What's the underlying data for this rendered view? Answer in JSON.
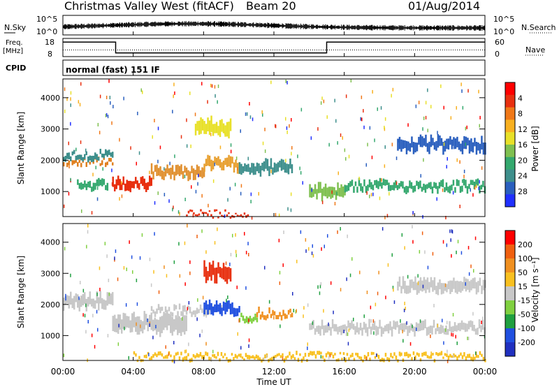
{
  "header": {
    "title": "Christmas Valley West (fitACF)",
    "beam": "Beam 20",
    "date": "01/Aug/2014"
  },
  "chart_data": [
    {
      "type": "line",
      "panel": "noise",
      "left_label": "N.Sky",
      "right_label": "N.Search",
      "left_ticks": [
        "10^5",
        "10^0"
      ],
      "right_ticks": [
        "10^5",
        "10^0"
      ],
      "scale": "log"
    },
    {
      "type": "line",
      "panel": "frequency",
      "left_label_line1": "Freq.",
      "left_label_line2": "[MHz]",
      "right_label": "Nave",
      "left_ticks": [
        18,
        8
      ],
      "right_ticks": [
        60,
        0
      ],
      "freq_steps": [
        {
          "t": 0,
          "v": 16
        },
        {
          "t": 3,
          "v": 16
        },
        {
          "t": 3,
          "v": 10
        },
        {
          "t": 15,
          "v": 10
        },
        {
          "t": 15,
          "v": 16
        },
        {
          "t": 24,
          "v": 16
        }
      ],
      "nave_level": 22
    },
    {
      "type": "text",
      "panel": "cpid",
      "label": "CPID",
      "mode": "normal (fast) 151 IF"
    },
    {
      "type": "heatmap",
      "panel": "power",
      "ylabel": "Slant Range [km]",
      "yticks": [
        1000,
        2000,
        3000,
        4000
      ],
      "ylim": [
        200,
        4600
      ],
      "xlim": [
        0,
        24
      ],
      "colorbar_label": "Power [dB]",
      "colorbar_ticks": [
        "4",
        "8",
        "12",
        "16",
        "20",
        "24",
        "28"
      ],
      "colorbar_colors": [
        "#2030ff",
        "#2a5fbe",
        "#3e8f8c",
        "#34a86e",
        "#7fc050",
        "#e8e028",
        "#f8b020",
        "#f07818",
        "#e83010",
        "#ff0000"
      ],
      "bands": [
        {
          "t": [
            0,
            2.8
          ],
          "r": [
            1900,
            2050
          ],
          "color": "#e08020"
        },
        {
          "t": [
            0,
            2.8
          ],
          "r": [
            2050,
            2250
          ],
          "color": "#3e8f8c"
        },
        {
          "t": [
            0.8,
            2.5
          ],
          "r": [
            1050,
            1300
          ],
          "color": "#34a86e"
        },
        {
          "t": [
            2.8,
            5
          ],
          "r": [
            1050,
            1400
          ],
          "color": "#e83010"
        },
        {
          "t": [
            5,
            8
          ],
          "r": [
            1450,
            1800
          ],
          "color": "#e09030"
        },
        {
          "t": [
            8,
            10
          ],
          "r": [
            1700,
            2050
          ],
          "color": "#e8a030"
        },
        {
          "t": [
            10,
            13
          ],
          "r": [
            1600,
            1950
          ],
          "color": "#3e8f8c"
        },
        {
          "t": [
            14,
            16
          ],
          "r": [
            800,
            1200
          ],
          "color": "#7fc050"
        },
        {
          "t": [
            16,
            24
          ],
          "r": [
            1050,
            1300
          ],
          "color": "#34a86e"
        },
        {
          "t": [
            7.5,
            9.5
          ],
          "r": [
            2800,
            3300
          ],
          "color": "#e8e028"
        },
        {
          "t": [
            19,
            24
          ],
          "r": [
            2300,
            2700
          ],
          "color": "#2a5fbe"
        },
        {
          "t": [
            7,
            10.5
          ],
          "r": [
            250,
            330
          ],
          "color": "#e83010"
        }
      ]
    },
    {
      "type": "heatmap",
      "panel": "velocity",
      "ylabel": "Slant Range [km]",
      "yticks": [
        1000,
        2000,
        3000,
        4000
      ],
      "ylim": [
        200,
        4600
      ],
      "xlim": [
        0,
        24
      ],
      "colorbar_label": "Velocity [m s⁻¹]",
      "colorbar_ticks": [
        "200",
        "100",
        "50",
        "15",
        "-15",
        "-50",
        "-100",
        "-200"
      ],
      "colorbar_colors": [
        "#2030c0",
        "#2050e0",
        "#20a040",
        "#80d040",
        "#c8c8c8",
        "#f8c020",
        "#f09020",
        "#f06010",
        "#ff0000"
      ],
      "bands": [
        {
          "t": [
            0,
            2.8
          ],
          "r": [
            1900,
            2300
          ],
          "color": "#c8c8c8"
        },
        {
          "t": [
            2.8,
            7
          ],
          "r": [
            1100,
            1700
          ],
          "color": "#c8c8c8"
        },
        {
          "t": [
            5,
            9
          ],
          "r": [
            1700,
            1900
          ],
          "color": "#c8c8c8"
        },
        {
          "t": [
            8,
            10
          ],
          "r": [
            1700,
            2050
          ],
          "color": "#2050e0"
        },
        {
          "t": [
            10,
            11
          ],
          "r": [
            1500,
            1700
          ],
          "color": "#80d040"
        },
        {
          "t": [
            11,
            13
          ],
          "r": [
            1600,
            1800
          ],
          "color": "#f09020"
        },
        {
          "t": [
            14,
            24
          ],
          "r": [
            1100,
            1400
          ],
          "color": "#c8c8c8"
        },
        {
          "t": [
            8,
            9.5
          ],
          "r": [
            2800,
            3300
          ],
          "color": "#e83010"
        },
        {
          "t": [
            19,
            24
          ],
          "r": [
            2400,
            2800
          ],
          "color": "#c8c8c8"
        },
        {
          "t": [
            4,
            24
          ],
          "r": [
            250,
            380
          ],
          "color": "#f8c020"
        }
      ]
    }
  ],
  "xaxis": {
    "label": "Time UT",
    "ticks": [
      "00:00",
      "04:00",
      "08:00",
      "12:00",
      "16:00",
      "20:00",
      "00:00"
    ],
    "values": [
      0,
      4,
      8,
      12,
      16,
      20,
      24
    ]
  }
}
